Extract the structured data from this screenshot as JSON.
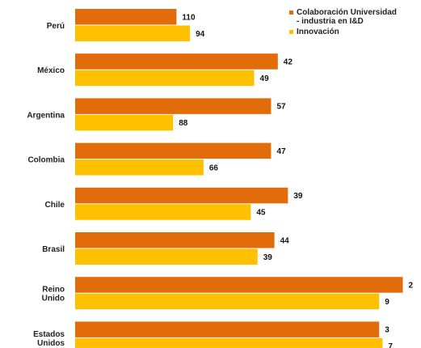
{
  "chart_data": {
    "type": "bar",
    "orientation": "horizontal",
    "categories": [
      "Perú",
      "México",
      "Argentina",
      "Colombia",
      "Chile",
      "Brasil",
      "Reino\nUnido",
      "Estados\nUnidos"
    ],
    "series": [
      {
        "name": "Colaboración Universidad\n- industria en I&D",
        "color": "#e36c0a",
        "values": [
          30,
          60,
          58,
          58,
          63,
          59,
          97,
          90
        ],
        "labels": [
          "110",
          "42",
          "57",
          "47",
          "39",
          "44",
          "2",
          "3"
        ]
      },
      {
        "name": "Innovación",
        "color": "#ffc000",
        "values": [
          34,
          53,
          29,
          38,
          52,
          54,
          90,
          91
        ],
        "labels": [
          "94",
          "49",
          "88",
          "66",
          "45",
          "39",
          "9",
          "7"
        ]
      }
    ],
    "xlim": [
      0,
      100
    ],
    "grid": false,
    "legend_position": "top-right"
  }
}
